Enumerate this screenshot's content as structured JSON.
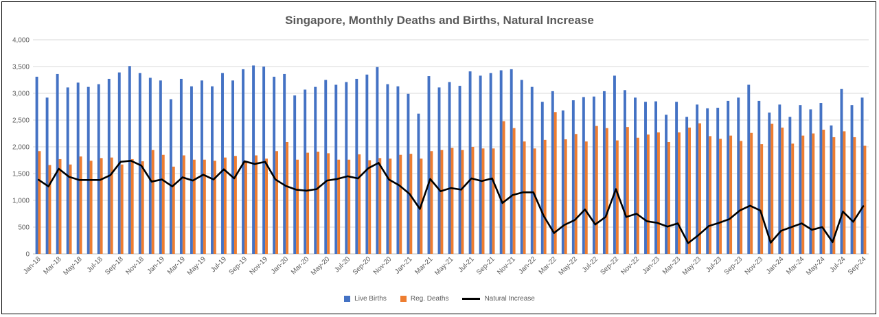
{
  "chart_data": {
    "type": "bar",
    "title": "Singapore, Monthly Deaths and Births, Natural Increase",
    "xlabel": "",
    "ylabel": "",
    "ylim": [
      0,
      4000
    ],
    "yticks": [
      "0",
      "500",
      "1,000",
      "1,500",
      "2,000",
      "2,500",
      "3,000",
      "3,500",
      "4,000"
    ],
    "grid": true,
    "legend": "bottom",
    "categories": [
      "Jan-18",
      "Feb-18",
      "Mar-18",
      "Apr-18",
      "May-18",
      "Jun-18",
      "Jul-18",
      "Aug-18",
      "Sep-18",
      "Oct-18",
      "Nov-18",
      "Dec-18",
      "Jan-19",
      "Feb-19",
      "Mar-19",
      "Apr-19",
      "May-19",
      "Jun-19",
      "Jul-19",
      "Aug-19",
      "Sep-19",
      "Oct-19",
      "Nov-19",
      "Dec-19",
      "Jan-20",
      "Feb-20",
      "Mar-20",
      "Apr-20",
      "May-20",
      "Jun-20",
      "Jul-20",
      "Aug-20",
      "Sep-20",
      "Oct-20",
      "Nov-20",
      "Dec-20",
      "Jan-21",
      "Feb-21",
      "Mar-21",
      "Apr-21",
      "May-21",
      "Jun-21",
      "Jul-21",
      "Aug-21",
      "Sep-21",
      "Oct-21",
      "Nov-21",
      "Dec-21",
      "Jan-22",
      "Feb-22",
      "Mar-22",
      "Apr-22",
      "May-22",
      "Jun-22",
      "Jul-22",
      "Aug-22",
      "Sep-22",
      "Oct-22",
      "Nov-22",
      "Dec-22",
      "Jan-23",
      "Feb-23",
      "Mar-23",
      "Apr-23",
      "May-23",
      "Jun-23",
      "Jul-23",
      "Aug-23",
      "Sep-23",
      "Oct-23",
      "Nov-23",
      "Dec-23",
      "Jan-24",
      "Feb-24",
      "Mar-24",
      "Apr-24",
      "May-24",
      "Jun-24",
      "Jul-24",
      "Aug-24",
      "Sep-24"
    ],
    "xtick_labels_shown": [
      "Jan-18",
      "Mar-18",
      "May-18",
      "Jul-18",
      "Sep-18",
      "Nov-18",
      "Jan-19",
      "Mar-19",
      "May-19",
      "Jul-19",
      "Sep-19",
      "Nov-19",
      "Jan-20",
      "Mar-20",
      "May-20",
      "Jul-20",
      "Sep-20",
      "Nov-20",
      "Jan-21",
      "Mar-21",
      "May-21",
      "Jul-21",
      "Sep-21",
      "Nov-21",
      "Jan-22",
      "Mar-22",
      "May-22",
      "Jul-22",
      "Sep-22",
      "Nov-22",
      "Jan-23",
      "Mar-23",
      "May-23",
      "Jul-23",
      "Sep-23",
      "Nov-23",
      "Jan-24",
      "Mar-24",
      "May-24",
      "Jul-24",
      "Sep-24"
    ],
    "series": [
      {
        "name": "Live Births",
        "type": "bar",
        "color": "#4472C4",
        "values": [
          3310,
          2920,
          3360,
          3110,
          3200,
          3120,
          3170,
          3270,
          3390,
          3510,
          3380,
          3290,
          3240,
          2890,
          3270,
          3130,
          3240,
          3130,
          3380,
          3240,
          3450,
          3520,
          3500,
          3310,
          3360,
          2960,
          3070,
          3120,
          3250,
          3160,
          3210,
          3270,
          3350,
          3490,
          3170,
          3130,
          2990,
          2620,
          3320,
          3110,
          3210,
          3140,
          3410,
          3330,
          3380,
          3430,
          3450,
          3250,
          3120,
          2840,
          3040,
          2680,
          2870,
          2930,
          2940,
          3040,
          3330,
          3060,
          2920,
          2840,
          2850,
          2600,
          2840,
          2560,
          2790,
          2720,
          2730,
          2860,
          2920,
          3160,
          2860,
          2640,
          2790,
          2560,
          2780,
          2700,
          2820,
          2400,
          3080,
          2780,
          2920
        ]
      },
      {
        "name": "Reg. Deaths",
        "type": "bar",
        "color": "#ED7D31",
        "values": [
          1920,
          1660,
          1770,
          1670,
          1820,
          1740,
          1790,
          1800,
          1670,
          1770,
          1730,
          1940,
          1850,
          1630,
          1840,
          1760,
          1760,
          1740,
          1800,
          1830,
          1720,
          1840,
          1780,
          1920,
          2090,
          1760,
          1890,
          1910,
          1880,
          1760,
          1760,
          1860,
          1750,
          1790,
          1780,
          1850,
          1870,
          1780,
          1920,
          1940,
          1980,
          1940,
          2000,
          1970,
          1970,
          2480,
          2350,
          2100,
          1970,
          2130,
          2650,
          2140,
          2240,
          2100,
          2390,
          2350,
          2120,
          2370,
          2170,
          2230,
          2270,
          2090,
          2270,
          2360,
          2440,
          2200,
          2150,
          2210,
          2110,
          2260,
          2050,
          2430,
          2360,
          2060,
          2210,
          2250,
          2320,
          2180,
          2290,
          2180,
          2020
        ]
      },
      {
        "name": "Natural Increase",
        "type": "line",
        "color": "#000000",
        "values": [
          1390,
          1260,
          1590,
          1440,
          1380,
          1380,
          1380,
          1470,
          1720,
          1740,
          1650,
          1350,
          1390,
          1260,
          1430,
          1370,
          1480,
          1390,
          1580,
          1410,
          1730,
          1680,
          1720,
          1390,
          1270,
          1200,
          1180,
          1210,
          1370,
          1400,
          1450,
          1410,
          1600,
          1700,
          1390,
          1280,
          1120,
          840,
          1400,
          1170,
          1230,
          1200,
          1410,
          1360,
          1410,
          950,
          1100,
          1150,
          1150,
          710,
          390,
          540,
          630,
          830,
          550,
          690,
          1210,
          690,
          750,
          610,
          580,
          510,
          570,
          200,
          350,
          520,
          580,
          650,
          810,
          900,
          810,
          210,
          430,
          500,
          570,
          450,
          500,
          220,
          790,
          600,
          900
        ]
      }
    ]
  }
}
